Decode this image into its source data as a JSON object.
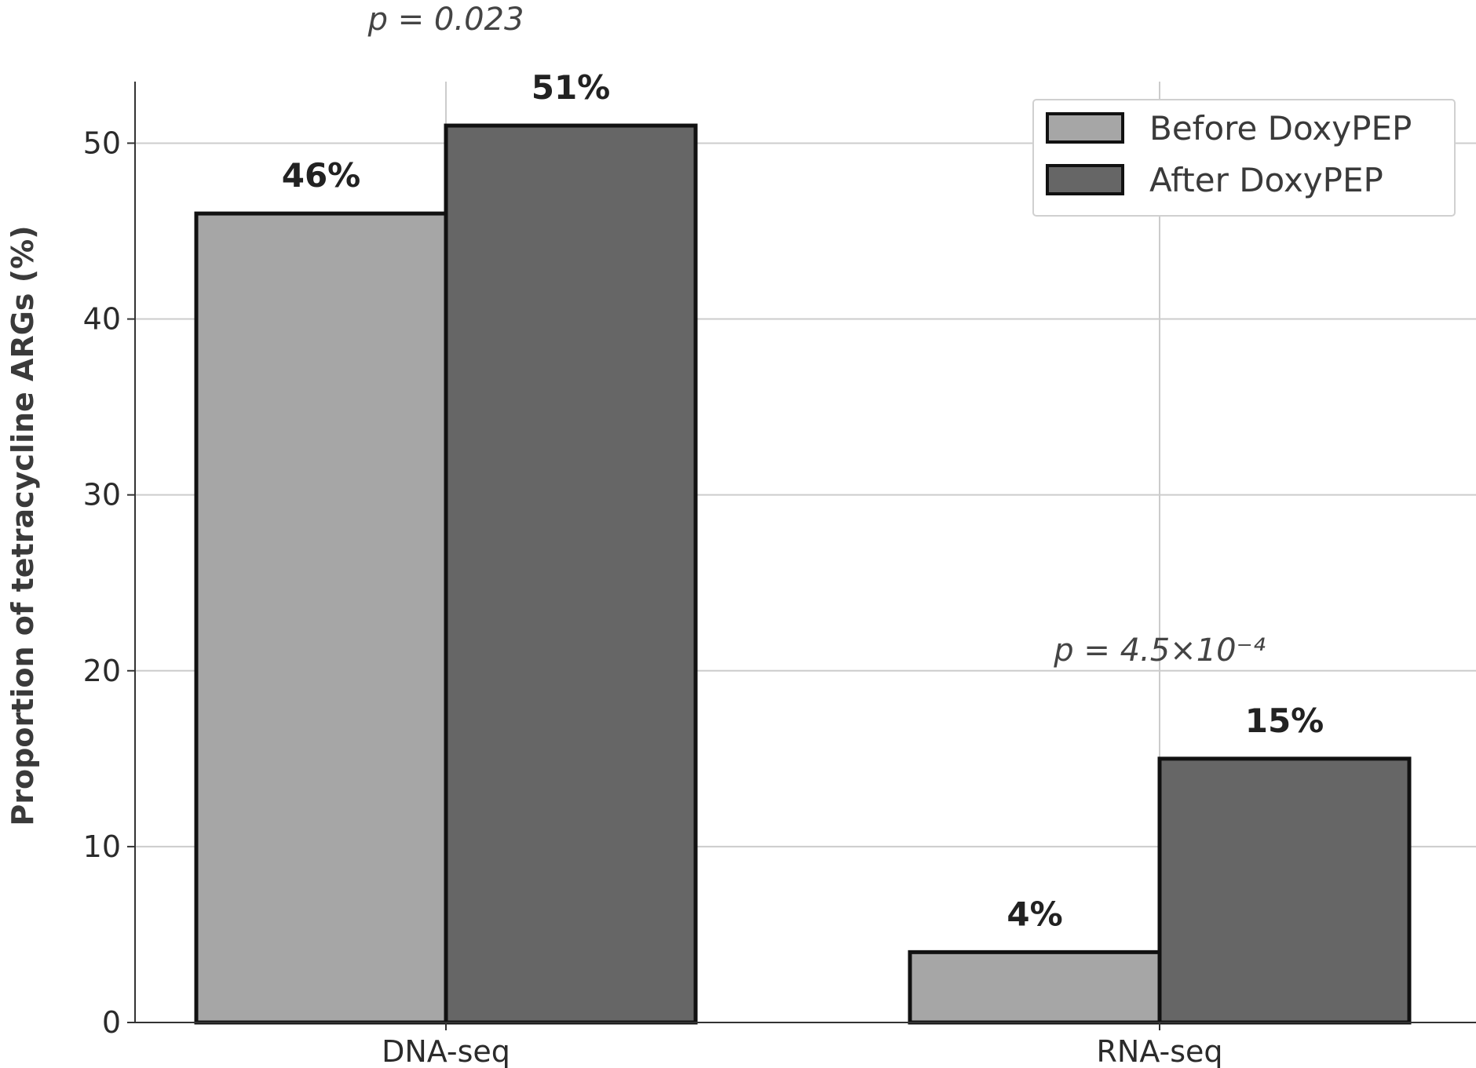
{
  "chart_data": {
    "type": "bar",
    "categories": [
      "DNA-seq",
      "RNA-seq"
    ],
    "series": [
      {
        "name": "Before DoxyPEP",
        "values": [
          46,
          4
        ],
        "labels": [
          "46%",
          "4%"
        ],
        "color": "#a6a6a6"
      },
      {
        "name": "After DoxyPEP",
        "values": [
          51,
          15
        ],
        "labels": [
          "51%",
          "15%"
        ],
        "color": "#666666"
      }
    ],
    "title": "",
    "xlabel": "",
    "ylabel": "Proportion of tetracycline ARGs (%)",
    "ylim": [
      0,
      53.5
    ],
    "yticks": [
      0,
      10,
      20,
      30,
      40,
      50
    ],
    "grid": true,
    "legend_position": "top-right",
    "annotations": [
      {
        "text": "p = 0.023",
        "category": "DNA-seq"
      },
      {
        "text": "p = 4.5×10⁻⁴",
        "category": "RNA-seq"
      }
    ]
  }
}
